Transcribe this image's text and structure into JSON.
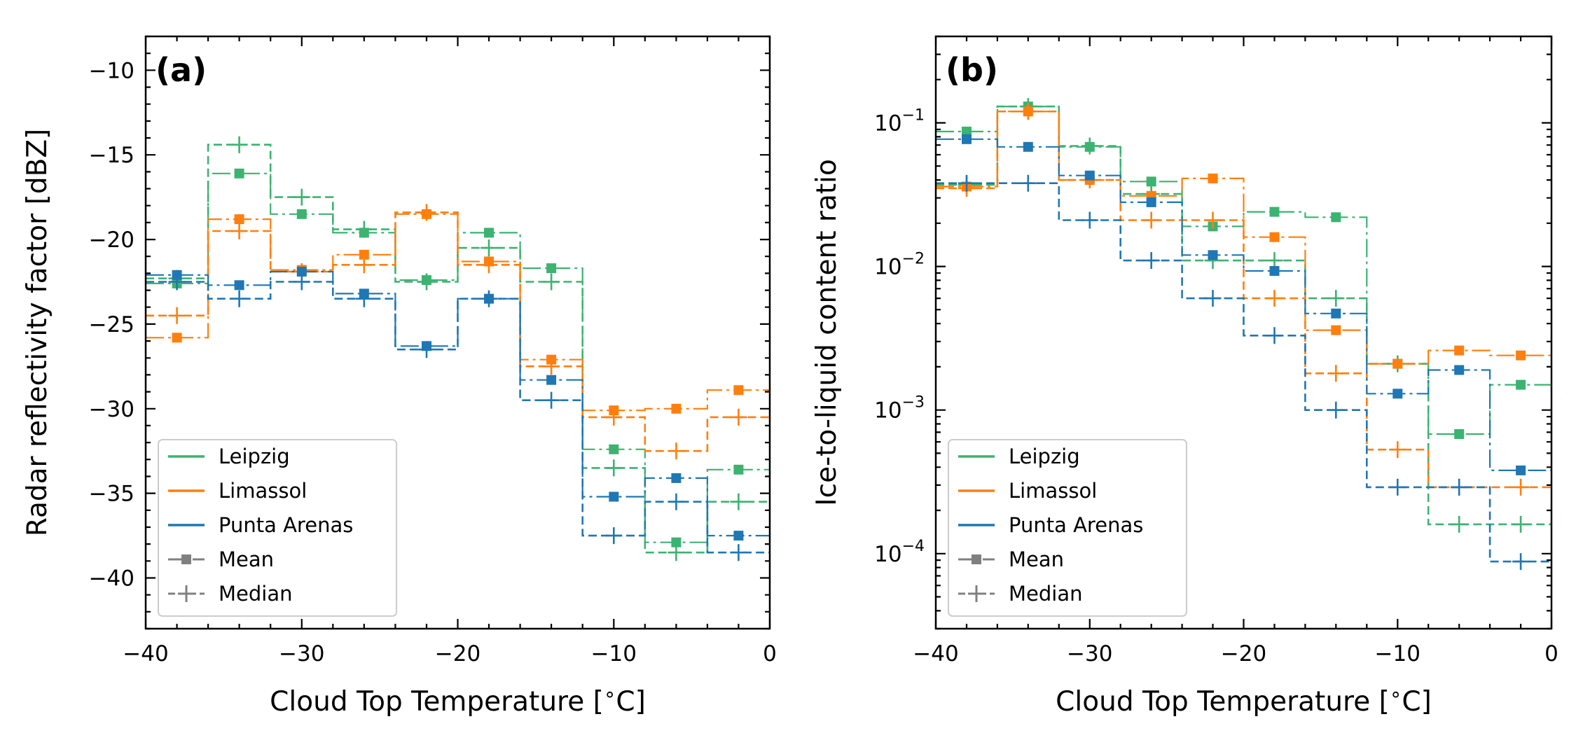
{
  "colors": {
    "Leipzig": "#3cb371",
    "Limassol": "#ff7f0e",
    "Punta Arenas": "#1f77b4",
    "legend_style": "#808080"
  },
  "legend": {
    "entries": [
      "Leipzig",
      "Limassol",
      "Punta Arenas"
    ],
    "style_entries": [
      "Mean",
      "Median"
    ],
    "placement": "lower-left"
  },
  "chart_data": [
    {
      "type": "line",
      "drawstyle": "steps",
      "panel_label": "(a)",
      "xlabel": "Cloud Top Temperature [$^\\circ$C]",
      "ylabel": "Radar reflectivity factor [dBZ]",
      "xlim": [
        -40,
        0
      ],
      "ylim": [
        -43,
        -8
      ],
      "yscale": "linear",
      "xticks": [
        -40,
        -30,
        -20,
        -10,
        0
      ],
      "xtick_labels": [
        "−40",
        "−30",
        "−20",
        "−10",
        "0"
      ],
      "yticks": [
        -10,
        -15,
        -20,
        -25,
        -30,
        -35,
        -40
      ],
      "ytick_labels": [
        "−10",
        "−15",
        "−20",
        "−25",
        "−30",
        "−35",
        "−40"
      ],
      "grid": false,
      "bin_edges": [
        -40,
        -36,
        -32,
        -28,
        -24,
        -20,
        -16,
        -12,
        -8,
        -4,
        0
      ],
      "bin_centers": [
        -38,
        -34,
        -30,
        -26,
        -22,
        -18,
        -14,
        -10,
        -6,
        -2
      ],
      "series": [
        {
          "name": "Leipzig",
          "stat": "Mean",
          "values": [
            -22.6,
            -16.1,
            -18.5,
            -19.6,
            -22.4,
            -19.6,
            -21.7,
            -32.4,
            -37.9,
            -33.6
          ]
        },
        {
          "name": "Leipzig",
          "stat": "Median",
          "values": [
            -22.3,
            -14.4,
            -17.5,
            -19.4,
            -22.5,
            -20.5,
            -22.5,
            -33.5,
            -38.5,
            -35.5
          ]
        },
        {
          "name": "Limassol",
          "stat": "Mean",
          "values": [
            -25.8,
            -18.8,
            -21.8,
            -20.9,
            -18.5,
            -21.3,
            -27.1,
            -30.1,
            -30.0,
            -28.9
          ]
        },
        {
          "name": "Limassol",
          "stat": "Median",
          "values": [
            -24.5,
            -19.5,
            -21.9,
            -21.5,
            -18.4,
            -21.5,
            -27.5,
            -30.5,
            -32.5,
            -30.5
          ]
        },
        {
          "name": "Punta Arenas",
          "stat": "Mean",
          "values": [
            -22.1,
            -22.7,
            -21.9,
            -23.2,
            -26.3,
            -23.5,
            -28.3,
            -35.2,
            -34.1,
            -37.5
          ]
        },
        {
          "name": "Punta Arenas",
          "stat": "Median",
          "values": [
            -22.5,
            -23.5,
            -22.5,
            -23.5,
            -26.5,
            -23.5,
            -29.5,
            -37.5,
            -35.5,
            -38.5
          ]
        }
      ]
    },
    {
      "type": "line",
      "drawstyle": "steps",
      "panel_label": "(b)",
      "xlabel": "Cloud Top Temperature [$^\\circ$C]",
      "ylabel": "Ice-to-liquid content ratio",
      "xlim": [
        -40,
        0
      ],
      "ylim": [
        3e-05,
        0.4
      ],
      "yscale": "log",
      "xticks": [
        -40,
        -30,
        -20,
        -10,
        0
      ],
      "xtick_labels": [
        "−40",
        "−30",
        "−20",
        "−10",
        "0"
      ],
      "yticks": [
        0.1,
        0.01,
        0.001,
        0.0001
      ],
      "ytick_exponents": [
        "−1",
        "−2",
        "−3",
        "−4"
      ],
      "ytick_base": "10",
      "grid": false,
      "bin_edges": [
        -40,
        -36,
        -32,
        -28,
        -24,
        -20,
        -16,
        -12,
        -8,
        -4,
        0
      ],
      "bin_centers": [
        -38,
        -34,
        -30,
        -26,
        -22,
        -18,
        -14,
        -10,
        -6,
        -2
      ],
      "series": [
        {
          "name": "Leipzig",
          "stat": "Mean",
          "values": [
            0.087,
            0.13,
            0.068,
            0.039,
            0.019,
            0.024,
            0.022,
            0.0021,
            0.00068,
            0.0015
          ]
        },
        {
          "name": "Leipzig",
          "stat": "Median",
          "values": [
            0.037,
            0.13,
            0.069,
            0.032,
            0.011,
            0.011,
            0.006,
            0.0021,
            0.00016,
            0.00016
          ]
        },
        {
          "name": "Limassol",
          "stat": "Mean",
          "values": [
            0.036,
            0.12,
            0.04,
            0.031,
            0.041,
            0.016,
            0.0036,
            0.0021,
            0.0026,
            0.0024
          ]
        },
        {
          "name": "Limassol",
          "stat": "Median",
          "values": [
            0.035,
            0.12,
            0.04,
            0.021,
            0.021,
            0.006,
            0.0018,
            0.00053,
            0.00029,
            0.00029
          ]
        },
        {
          "name": "Punta Arenas",
          "stat": "Mean",
          "values": [
            0.077,
            0.068,
            0.043,
            0.028,
            0.012,
            0.0093,
            0.0047,
            0.0013,
            0.0019,
            0.00038
          ]
        },
        {
          "name": "Punta Arenas",
          "stat": "Median",
          "values": [
            0.038,
            0.038,
            0.021,
            0.011,
            0.006,
            0.0033,
            0.001,
            0.00029,
            0.00029,
            8.8e-05
          ]
        }
      ]
    }
  ]
}
